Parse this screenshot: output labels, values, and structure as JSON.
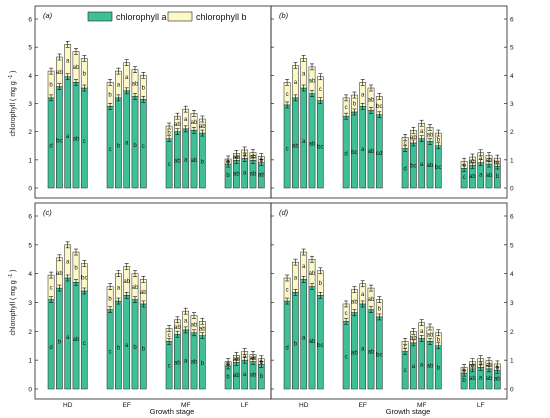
{
  "figure": {
    "legend": {
      "items": [
        "chlorophyll a",
        "chlorophyll b"
      ]
    },
    "colors": {
      "chl_a": "#3fbf96",
      "chl_b": "#fdf8c8",
      "stroke": "#222222"
    },
    "ylabel": "chlorophyll ( mg g",
    "ylabel_sup": "-1",
    "ylabel_close": ")",
    "xlabel": "Growth stage",
    "yticks": [
      "0",
      "1",
      "2",
      "3",
      "4",
      "5",
      "6"
    ]
  },
  "chart_data": [
    {
      "type": "bar",
      "stacked": true,
      "panel_label": "(a)",
      "categories": [
        "HD",
        "EF",
        "MF",
        "LF"
      ],
      "bars_per_category": 5,
      "ylim": [
        0,
        6
      ],
      "series": [
        {
          "name": "chlorophyll a",
          "values": [
            [
              3.2,
              3.6,
              3.95,
              3.75,
              3.55
            ],
            [
              2.9,
              3.2,
              3.45,
              3.25,
              3.15
            ],
            [
              1.75,
              2.0,
              2.1,
              2.05,
              1.95
            ],
            [
              0.85,
              0.98,
              1.05,
              0.98,
              0.9
            ]
          ],
          "letters": [
            [
              "d",
              "bc",
              "a",
              "ab",
              "c"
            ],
            [
              "c",
              "b",
              "a",
              "b",
              "c"
            ],
            [
              "c",
              "ab",
              "a",
              "ab",
              "b"
            ],
            [
              "b",
              "ab",
              "a",
              "ab",
              "ab"
            ]
          ]
        },
        {
          "name": "chlorophyll b",
          "values": [
            [
              0.95,
              1.05,
              1.15,
              1.1,
              1.05
            ],
            [
              0.85,
              0.95,
              1.0,
              0.95,
              0.85
            ],
            [
              0.45,
              0.55,
              0.7,
              0.6,
              0.5
            ],
            [
              0.18,
              0.25,
              0.3,
              0.28,
              0.22
            ]
          ],
          "letters": [
            [
              "b",
              "ab",
              "a",
              "ab",
              "b"
            ],
            [
              "b",
              "a",
              "a",
              "ab",
              "b"
            ],
            [
              "b",
              "ab",
              "a",
              "ab",
              "ab"
            ],
            [
              "b",
              "ab",
              "a",
              "ab",
              "b"
            ]
          ]
        }
      ]
    },
    {
      "type": "bar",
      "stacked": true,
      "panel_label": "(b)",
      "categories": [
        "HD",
        "EF",
        "MF",
        "LF"
      ],
      "bars_per_category": 5,
      "ylim": [
        0,
        6
      ],
      "series": [
        {
          "name": "chlorophyll a",
          "values": [
            [
              2.95,
              3.2,
              3.55,
              3.35,
              3.1
            ],
            [
              2.55,
              2.7,
              2.9,
              2.75,
              2.6
            ],
            [
              1.4,
              1.6,
              1.75,
              1.65,
              1.5
            ],
            [
              0.7,
              0.8,
              0.9,
              0.85,
              0.78
            ]
          ],
          "letters": [
            [
              "c",
              "ab",
              "a",
              "ab",
              "bc"
            ],
            [
              "d",
              "bc",
              "a",
              "ab",
              "cd"
            ],
            [
              "d",
              "bc",
              "a",
              "ab",
              "bc"
            ],
            [
              "c",
              "ab",
              "a",
              "ab",
              "b"
            ]
          ]
        },
        {
          "name": "chlorophyll b",
          "values": [
            [
              0.8,
              1.15,
              1.05,
              0.95,
              0.85
            ],
            [
              0.65,
              0.6,
              0.85,
              0.8,
              0.65
            ],
            [
              0.4,
              0.45,
              0.55,
              0.5,
              0.45
            ],
            [
              0.25,
              0.3,
              0.35,
              0.3,
              0.28
            ]
          ],
          "letters": [
            [
              "c",
              "a",
              "a",
              "ab",
              "c"
            ],
            [
              "c",
              "b",
              "a",
              "ab",
              "bc"
            ],
            [
              "c",
              "ab",
              "a",
              "ab",
              "b"
            ],
            [
              "c",
              "ab",
              "a",
              "ab",
              "bc"
            ]
          ]
        }
      ]
    },
    {
      "type": "bar",
      "stacked": true,
      "panel_label": "(c)",
      "categories": [
        "HD",
        "EF",
        "MF",
        "LF"
      ],
      "bars_per_category": 5,
      "ylim": [
        0,
        6
      ],
      "series": [
        {
          "name": "chlorophyll a",
          "values": [
            [
              3.1,
              3.5,
              3.85,
              3.7,
              3.4
            ],
            [
              2.75,
              3.05,
              3.25,
              3.1,
              2.95
            ],
            [
              1.65,
              1.9,
              2.05,
              1.95,
              1.85
            ],
            [
              0.8,
              0.92,
              1.0,
              0.95,
              0.85
            ]
          ],
          "letters": [
            [
              "d",
              "b",
              "a",
              "ab",
              "c"
            ],
            [
              "c",
              "b",
              "a",
              "b",
              "b"
            ],
            [
              "c",
              "ab",
              "a",
              "ab",
              "b"
            ],
            [
              "b",
              "ab",
              "a",
              "ab",
              "b"
            ]
          ]
        },
        {
          "name": "chlorophyll b",
          "values": [
            [
              0.85,
              1.05,
              1.15,
              1.05,
              0.95
            ],
            [
              0.8,
              0.95,
              1.0,
              0.9,
              0.85
            ],
            [
              0.45,
              0.5,
              0.65,
              0.6,
              0.5
            ],
            [
              0.15,
              0.25,
              0.3,
              0.25,
              0.2
            ]
          ],
          "letters": [
            [
              "c",
              "ab",
              "a",
              "b",
              "bc"
            ],
            [
              "b",
              "a",
              "ab",
              "ab",
              "ab"
            ],
            [
              "c",
              "ab",
              "a",
              "ab",
              "ab"
            ],
            [
              "b",
              "ab",
              "a",
              "ab",
              "b"
            ]
          ]
        }
      ]
    },
    {
      "type": "bar",
      "stacked": true,
      "panel_label": "(d)",
      "categories": [
        "HD",
        "EF",
        "MF",
        "LF"
      ],
      "bars_per_category": 5,
      "ylim": [
        0,
        6
      ],
      "series": [
        {
          "name": "chlorophyll a",
          "values": [
            [
              3.05,
              3.35,
              3.8,
              3.55,
              3.25
            ],
            [
              2.35,
              2.65,
              2.95,
              2.75,
              2.5
            ],
            [
              1.3,
              1.6,
              1.75,
              1.65,
              1.5
            ],
            [
              0.55,
              0.7,
              0.75,
              0.7,
              0.65
            ]
          ],
          "letters": [
            [
              "d",
              "b",
              "a",
              "ab",
              "bc"
            ],
            [
              "c",
              "ab",
              "a",
              "ab",
              "bc"
            ],
            [
              "c",
              "a",
              "a",
              "ab",
              "b"
            ],
            [
              "b",
              "ab",
              "a",
              "ab",
              "ab"
            ]
          ]
        },
        {
          "name": "chlorophyll b",
          "values": [
            [
              0.8,
              1.05,
              0.95,
              0.95,
              0.85
            ],
            [
              0.6,
              0.8,
              0.7,
              0.75,
              0.6
            ],
            [
              0.35,
              0.4,
              0.55,
              0.5,
              0.45
            ],
            [
              0.2,
              0.25,
              0.3,
              0.28,
              0.22
            ]
          ],
          "letters": [
            [
              "c",
              "a",
              "a",
              "ab",
              "b"
            ],
            [
              "c",
              "ab",
              "a",
              "ab",
              "b"
            ],
            [
              "c",
              "ab",
              "a",
              "ab",
              "b"
            ],
            [
              "b",
              "ab",
              "a",
              "ab",
              "b"
            ]
          ]
        }
      ]
    }
  ]
}
